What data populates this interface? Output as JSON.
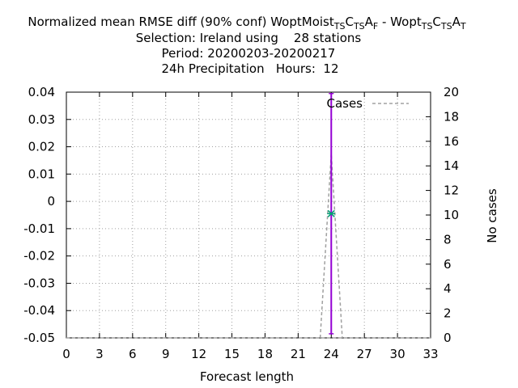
{
  "chart_data": {
    "type": "line",
    "title_lines": [
      "Normalized mean RMSE diff (90% conf) WoptMoist_{TS}C_{TS}A_F - Wopt_{TS}C_{TS}A_T",
      "Selection: Ireland using    28 stations",
      "Period: 20200203-20200217",
      "24h Precipitation   Hours:  12"
    ],
    "xlabel": "Forecast length",
    "ylabel": "",
    "y2label": "No cases",
    "xlim": [
      0,
      33
    ],
    "ylim": [
      -0.05,
      0.04
    ],
    "y2lim": [
      0,
      20
    ],
    "xticks": [
      "0",
      "3",
      "6",
      "9",
      "12",
      "15",
      "18",
      "21",
      "24",
      "27",
      "30",
      "33"
    ],
    "yticks": [
      "-0.05",
      "-0.04",
      "-0.03",
      "-0.02",
      "-0.01",
      "0",
      "0.01",
      "0.02",
      "0.03",
      "0.04"
    ],
    "y2ticks": [
      "0",
      "2",
      "4",
      "6",
      "8",
      "10",
      "12",
      "14",
      "16",
      "18",
      "20"
    ],
    "grid": true,
    "legend_position": "top-right",
    "series": [
      {
        "name": "",
        "axis": "y1",
        "color": "#9400d3",
        "x": [
          24
        ],
        "y": [
          -0.0045
        ],
        "ci_low": [
          -0.0485
        ],
        "ci_high": [
          0.0395
        ]
      },
      {
        "name": "Cases",
        "axis": "y2",
        "color": "#a0a0a0",
        "style": "dashed",
        "x": [
          23,
          24,
          25
        ],
        "y": [
          0,
          15,
          0
        ]
      }
    ],
    "marker_color": "#009e73"
  }
}
